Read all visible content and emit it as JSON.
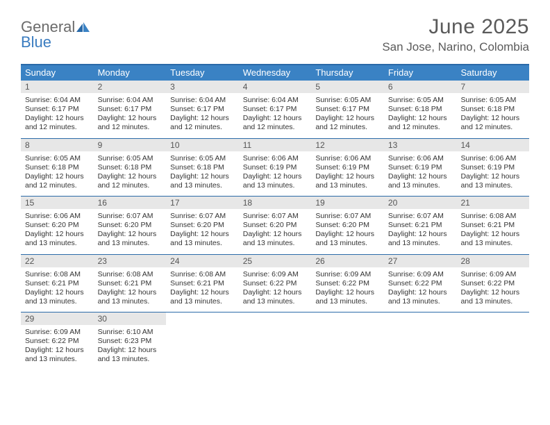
{
  "logo": {
    "general": "General",
    "blue": "Blue"
  },
  "title": "June 2025",
  "location": "San Jose, Narino, Colombia",
  "colors": {
    "header_bg": "#3a82c4",
    "rule": "#2a6aa8",
    "daynum_bg": "#e7e7e7",
    "text": "#333333",
    "muted": "#5a5a5a"
  },
  "dayHeaders": [
    "Sunday",
    "Monday",
    "Tuesday",
    "Wednesday",
    "Thursday",
    "Friday",
    "Saturday"
  ],
  "weeks": [
    [
      {
        "n": "1",
        "sr": "Sunrise: 6:04 AM",
        "ss": "Sunset: 6:17 PM",
        "d1": "Daylight: 12 hours",
        "d2": "and 12 minutes."
      },
      {
        "n": "2",
        "sr": "Sunrise: 6:04 AM",
        "ss": "Sunset: 6:17 PM",
        "d1": "Daylight: 12 hours",
        "d2": "and 12 minutes."
      },
      {
        "n": "3",
        "sr": "Sunrise: 6:04 AM",
        "ss": "Sunset: 6:17 PM",
        "d1": "Daylight: 12 hours",
        "d2": "and 12 minutes."
      },
      {
        "n": "4",
        "sr": "Sunrise: 6:04 AM",
        "ss": "Sunset: 6:17 PM",
        "d1": "Daylight: 12 hours",
        "d2": "and 12 minutes."
      },
      {
        "n": "5",
        "sr": "Sunrise: 6:05 AM",
        "ss": "Sunset: 6:17 PM",
        "d1": "Daylight: 12 hours",
        "d2": "and 12 minutes."
      },
      {
        "n": "6",
        "sr": "Sunrise: 6:05 AM",
        "ss": "Sunset: 6:18 PM",
        "d1": "Daylight: 12 hours",
        "d2": "and 12 minutes."
      },
      {
        "n": "7",
        "sr": "Sunrise: 6:05 AM",
        "ss": "Sunset: 6:18 PM",
        "d1": "Daylight: 12 hours",
        "d2": "and 12 minutes."
      }
    ],
    [
      {
        "n": "8",
        "sr": "Sunrise: 6:05 AM",
        "ss": "Sunset: 6:18 PM",
        "d1": "Daylight: 12 hours",
        "d2": "and 12 minutes."
      },
      {
        "n": "9",
        "sr": "Sunrise: 6:05 AM",
        "ss": "Sunset: 6:18 PM",
        "d1": "Daylight: 12 hours",
        "d2": "and 12 minutes."
      },
      {
        "n": "10",
        "sr": "Sunrise: 6:05 AM",
        "ss": "Sunset: 6:18 PM",
        "d1": "Daylight: 12 hours",
        "d2": "and 13 minutes."
      },
      {
        "n": "11",
        "sr": "Sunrise: 6:06 AM",
        "ss": "Sunset: 6:19 PM",
        "d1": "Daylight: 12 hours",
        "d2": "and 13 minutes."
      },
      {
        "n": "12",
        "sr": "Sunrise: 6:06 AM",
        "ss": "Sunset: 6:19 PM",
        "d1": "Daylight: 12 hours",
        "d2": "and 13 minutes."
      },
      {
        "n": "13",
        "sr": "Sunrise: 6:06 AM",
        "ss": "Sunset: 6:19 PM",
        "d1": "Daylight: 12 hours",
        "d2": "and 13 minutes."
      },
      {
        "n": "14",
        "sr": "Sunrise: 6:06 AM",
        "ss": "Sunset: 6:19 PM",
        "d1": "Daylight: 12 hours",
        "d2": "and 13 minutes."
      }
    ],
    [
      {
        "n": "15",
        "sr": "Sunrise: 6:06 AM",
        "ss": "Sunset: 6:20 PM",
        "d1": "Daylight: 12 hours",
        "d2": "and 13 minutes."
      },
      {
        "n": "16",
        "sr": "Sunrise: 6:07 AM",
        "ss": "Sunset: 6:20 PM",
        "d1": "Daylight: 12 hours",
        "d2": "and 13 minutes."
      },
      {
        "n": "17",
        "sr": "Sunrise: 6:07 AM",
        "ss": "Sunset: 6:20 PM",
        "d1": "Daylight: 12 hours",
        "d2": "and 13 minutes."
      },
      {
        "n": "18",
        "sr": "Sunrise: 6:07 AM",
        "ss": "Sunset: 6:20 PM",
        "d1": "Daylight: 12 hours",
        "d2": "and 13 minutes."
      },
      {
        "n": "19",
        "sr": "Sunrise: 6:07 AM",
        "ss": "Sunset: 6:20 PM",
        "d1": "Daylight: 12 hours",
        "d2": "and 13 minutes."
      },
      {
        "n": "20",
        "sr": "Sunrise: 6:07 AM",
        "ss": "Sunset: 6:21 PM",
        "d1": "Daylight: 12 hours",
        "d2": "and 13 minutes."
      },
      {
        "n": "21",
        "sr": "Sunrise: 6:08 AM",
        "ss": "Sunset: 6:21 PM",
        "d1": "Daylight: 12 hours",
        "d2": "and 13 minutes."
      }
    ],
    [
      {
        "n": "22",
        "sr": "Sunrise: 6:08 AM",
        "ss": "Sunset: 6:21 PM",
        "d1": "Daylight: 12 hours",
        "d2": "and 13 minutes."
      },
      {
        "n": "23",
        "sr": "Sunrise: 6:08 AM",
        "ss": "Sunset: 6:21 PM",
        "d1": "Daylight: 12 hours",
        "d2": "and 13 minutes."
      },
      {
        "n": "24",
        "sr": "Sunrise: 6:08 AM",
        "ss": "Sunset: 6:21 PM",
        "d1": "Daylight: 12 hours",
        "d2": "and 13 minutes."
      },
      {
        "n": "25",
        "sr": "Sunrise: 6:09 AM",
        "ss": "Sunset: 6:22 PM",
        "d1": "Daylight: 12 hours",
        "d2": "and 13 minutes."
      },
      {
        "n": "26",
        "sr": "Sunrise: 6:09 AM",
        "ss": "Sunset: 6:22 PM",
        "d1": "Daylight: 12 hours",
        "d2": "and 13 minutes."
      },
      {
        "n": "27",
        "sr": "Sunrise: 6:09 AM",
        "ss": "Sunset: 6:22 PM",
        "d1": "Daylight: 12 hours",
        "d2": "and 13 minutes."
      },
      {
        "n": "28",
        "sr": "Sunrise: 6:09 AM",
        "ss": "Sunset: 6:22 PM",
        "d1": "Daylight: 12 hours",
        "d2": "and 13 minutes."
      }
    ],
    [
      {
        "n": "29",
        "sr": "Sunrise: 6:09 AM",
        "ss": "Sunset: 6:22 PM",
        "d1": "Daylight: 12 hours",
        "d2": "and 13 minutes."
      },
      {
        "n": "30",
        "sr": "Sunrise: 6:10 AM",
        "ss": "Sunset: 6:23 PM",
        "d1": "Daylight: 12 hours",
        "d2": "and 13 minutes."
      },
      null,
      null,
      null,
      null,
      null
    ]
  ]
}
